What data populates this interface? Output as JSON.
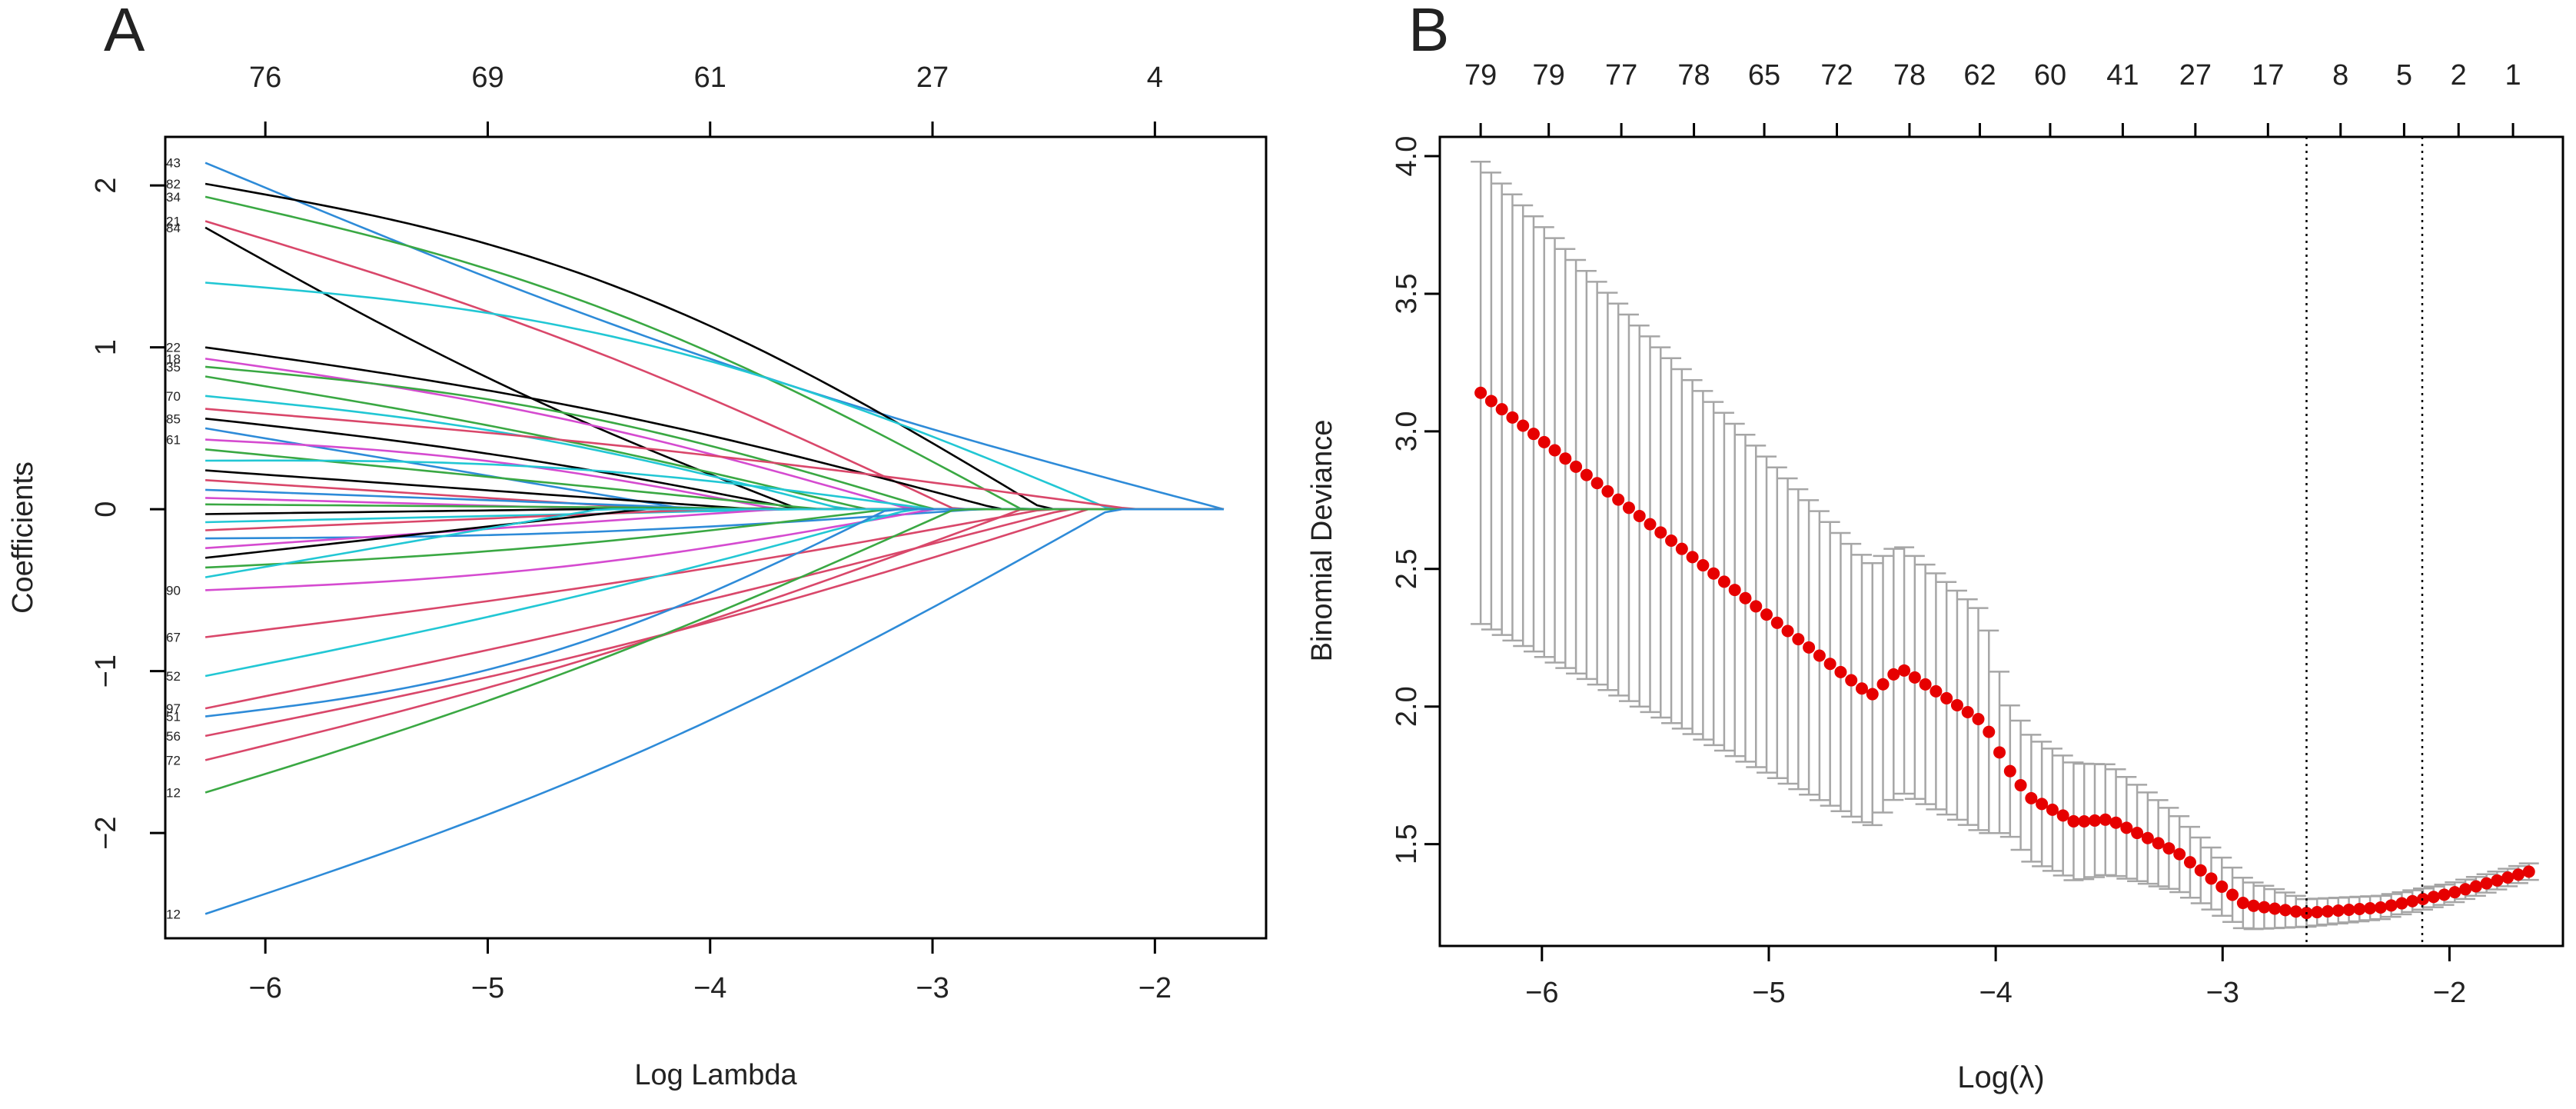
{
  "figure": {
    "panel_a_letter": "A",
    "panel_b_letter": "B"
  },
  "chart_data": [
    {
      "id": "A",
      "type": "line",
      "title": "",
      "xlabel": "Log Lambda",
      "ylabel": "Coefficients",
      "xlim": [
        -6.45,
        -1.5
      ],
      "ylim": [
        -2.65,
        2.3
      ],
      "x_ticks": [
        -6,
        -5,
        -4,
        -3,
        -2
      ],
      "x_tick_labels": [
        "−6",
        "−5",
        "−4",
        "−3",
        "−2"
      ],
      "y_ticks": [
        -2,
        -1,
        0,
        1,
        2
      ],
      "y_tick_labels": [
        "−2",
        "−1",
        "0",
        "1",
        "2"
      ],
      "top_ticks": [
        -6,
        -5,
        -4,
        -3,
        -2
      ],
      "top_tick_labels": [
        "76",
        "69",
        "61",
        "27",
        "4"
      ],
      "x_start": -6.27,
      "x_end": -1.69,
      "series": [
        {
          "label": "43",
          "color": "#2e8bd8",
          "start": 2.14,
          "zero_at": -1.69,
          "bulge": -0.15
        },
        {
          "label": "82",
          "color": "#000000",
          "start": 2.01,
          "zero_at": -2.5,
          "bulge": 0.35
        },
        {
          "label": "34",
          "color": "#3aa843",
          "start": 1.93,
          "zero_at": -2.6,
          "bulge": 0.25
        },
        {
          "label": "21",
          "color": "#d9476a",
          "start": 1.78,
          "zero_at": -2.9,
          "bulge": 0.12
        },
        {
          "label": "84",
          "color": "#000000",
          "start": 1.74,
          "zero_at": -3.6,
          "bulge": -0.1
        },
        {
          "label": "",
          "color": "#22c7d4",
          "start": 1.4,
          "zero_at": -2.2,
          "bulge": 0.3
        },
        {
          "label": "22",
          "color": "#000000",
          "start": 1.0,
          "zero_at": -2.7,
          "bulge": 0.1
        },
        {
          "label": "18",
          "color": "#d54bd0",
          "start": 0.93,
          "zero_at": -3.1,
          "bulge": 0.1
        },
        {
          "label": "35",
          "color": "#3aa843",
          "start": 0.88,
          "zero_at": -3.0,
          "bulge": 0.15
        },
        {
          "label": "",
          "color": "#3aa843",
          "start": 0.82,
          "zero_at": -3.3,
          "bulge": 0.05
        },
        {
          "label": "70",
          "color": "#22c7d4",
          "start": 0.7,
          "zero_at": -3.4,
          "bulge": 0.1
        },
        {
          "label": "",
          "color": "#d9476a",
          "start": 0.62,
          "zero_at": -2.1,
          "bulge": 0.05
        },
        {
          "label": "85",
          "color": "#000000",
          "start": 0.56,
          "zero_at": -3.6,
          "bulge": 0.05
        },
        {
          "label": "",
          "color": "#2e8bd8",
          "start": 0.5,
          "zero_at": -4.1,
          "bulge": 0.0
        },
        {
          "label": "61",
          "color": "#d54bd0",
          "start": 0.43,
          "zero_at": -3.7,
          "bulge": 0.08
        },
        {
          "label": "",
          "color": "#3aa843",
          "start": 0.37,
          "zero_at": -3.5,
          "bulge": 0.0
        },
        {
          "label": "",
          "color": "#22c7d4",
          "start": 0.3,
          "zero_at": -3.0,
          "bulge": 0.1
        },
        {
          "label": "",
          "color": "#000000",
          "start": 0.24,
          "zero_at": -3.8,
          "bulge": 0.0
        },
        {
          "label": "",
          "color": "#d9476a",
          "start": 0.18,
          "zero_at": -4.2,
          "bulge": 0.0
        },
        {
          "label": "",
          "color": "#2e8bd8",
          "start": 0.12,
          "zero_at": -3.9,
          "bulge": 0.0
        },
        {
          "label": "",
          "color": "#d54bd0",
          "start": 0.07,
          "zero_at": -4.4,
          "bulge": 0.0
        },
        {
          "label": "",
          "color": "#3aa843",
          "start": 0.03,
          "zero_at": -3.3,
          "bulge": 0.0
        },
        {
          "label": "",
          "color": "#000000",
          "start": -0.03,
          "zero_at": -4.6,
          "bulge": 0.0
        },
        {
          "label": "",
          "color": "#22c7d4",
          "start": -0.08,
          "zero_at": -3.6,
          "bulge": 0.0
        },
        {
          "label": "",
          "color": "#d9476a",
          "start": -0.13,
          "zero_at": -4.0,
          "bulge": 0.0
        },
        {
          "label": "",
          "color": "#2e8bd8",
          "start": -0.18,
          "zero_at": -2.8,
          "bulge": -0.05
        },
        {
          "label": "",
          "color": "#d54bd0",
          "start": -0.24,
          "zero_at": -3.7,
          "bulge": 0.0
        },
        {
          "label": "",
          "color": "#000000",
          "start": -0.3,
          "zero_at": -4.3,
          "bulge": 0.0
        },
        {
          "label": "",
          "color": "#3aa843",
          "start": -0.36,
          "zero_at": -3.2,
          "bulge": -0.05
        },
        {
          "label": "",
          "color": "#22c7d4",
          "start": -0.42,
          "zero_at": -4.5,
          "bulge": 0.0
        },
        {
          "label": "90",
          "color": "#d54bd0",
          "start": -0.5,
          "zero_at": -3.0,
          "bulge": -0.1
        },
        {
          "label": "67",
          "color": "#d9476a",
          "start": -0.79,
          "zero_at": -2.5,
          "bulge": -0.05
        },
        {
          "label": "52",
          "color": "#22c7d4",
          "start": -1.03,
          "zero_at": -3.1,
          "bulge": -0.05
        },
        {
          "label": "97",
          "color": "#d9476a",
          "start": -1.23,
          "zero_at": -2.4,
          "bulge": -0.05
        },
        {
          "label": "51",
          "color": "#2e8bd8",
          "start": -1.28,
          "zero_at": -3.2,
          "bulge": -0.25
        },
        {
          "label": "56",
          "color": "#d9476a",
          "start": -1.4,
          "zero_at": -2.3,
          "bulge": -0.1
        },
        {
          "label": "72",
          "color": "#d9476a",
          "start": -1.55,
          "zero_at": -2.6,
          "bulge": -0.1
        },
        {
          "label": "12",
          "color": "#3aa843",
          "start": -1.75,
          "zero_at": -2.9,
          "bulge": -0.1
        },
        {
          "label": "12",
          "color": "#2e8bd8",
          "start": -2.5,
          "zero_at": -2.2,
          "bulge": -0.2
        }
      ]
    },
    {
      "id": "B",
      "type": "scatter",
      "title": "",
      "xlabel": "Log(λ)",
      "ylabel": "Binomial Deviance",
      "xlim": [
        -6.45,
        -1.5
      ],
      "ylim": [
        1.13,
        4.07
      ],
      "x_ticks": [
        -6,
        -5,
        -4,
        -3,
        -2
      ],
      "x_tick_labels": [
        "−6",
        "−5",
        "−4",
        "−3",
        "−2"
      ],
      "y_ticks": [
        1.5,
        2.0,
        2.5,
        3.0,
        3.5,
        4.0
      ],
      "y_tick_labels": [
        "1.5",
        "2.0",
        "2.5",
        "3.0",
        "3.5",
        "4.0"
      ],
      "top_tick_positions": [
        -6.27,
        -5.97,
        -5.65,
        -5.33,
        -5.02,
        -4.7,
        -4.38,
        -4.07,
        -3.76,
        -3.44,
        -3.12,
        -2.8,
        -2.48,
        -2.2,
        -1.96,
        -1.72
      ],
      "top_tick_labels": [
        "79",
        "79",
        "77",
        "78",
        "65",
        "72",
        "78",
        "62",
        "60",
        "41",
        "27",
        "17",
        "8",
        "5",
        "2",
        "1"
      ],
      "vlines": [
        -2.63,
        -2.12
      ],
      "x_start": -6.27,
      "x_end": -1.65,
      "n_points": 100,
      "mean_keypoints": [
        [
          -6.27,
          3.14
        ],
        [
          -4.55,
          2.04
        ],
        [
          -4.42,
          2.14
        ],
        [
          -4.05,
          1.94
        ],
        [
          -3.95,
          1.78
        ],
        [
          -3.85,
          1.67
        ],
        [
          -3.65,
          1.58
        ],
        [
          -3.5,
          1.59
        ],
        [
          -3.2,
          1.47
        ],
        [
          -2.9,
          1.28
        ],
        [
          -2.63,
          1.25
        ],
        [
          -2.3,
          1.27
        ],
        [
          -2.0,
          1.32
        ],
        [
          -1.65,
          1.4
        ]
      ],
      "half_width_keypoints": [
        [
          -6.27,
          0.84
        ],
        [
          -4.42,
          0.45
        ],
        [
          -4.05,
          0.4
        ],
        [
          -3.95,
          0.24
        ],
        [
          -3.5,
          0.2
        ],
        [
          -3.1,
          0.12
        ],
        [
          -2.63,
          0.05
        ],
        [
          -2.2,
          0.04
        ],
        [
          -1.65,
          0.03
        ]
      ],
      "point_color": "#e60000",
      "error_bar_color": "#a6a6a6"
    }
  ]
}
